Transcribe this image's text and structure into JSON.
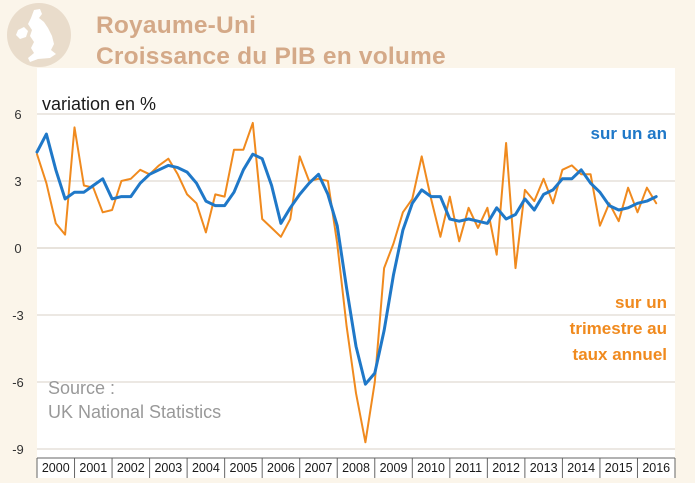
{
  "title": {
    "line1": "Royaume-Uni",
    "line2": "Croissance du PIB en volume"
  },
  "icon": "uk-map-icon",
  "colors": {
    "title": "#d4a988",
    "annual": "#1f78c8",
    "quarterly": "#f08a1e",
    "grid": "#d9d2c7",
    "background": "#fbf5ea",
    "plot_background": "#ffffff"
  },
  "chart_data": {
    "type": "line",
    "ylabel": "variation en %",
    "ylim": [
      -9,
      6
    ],
    "yticks": [
      "6",
      "3",
      "0",
      "-3",
      "-6",
      "-9"
    ],
    "ytick_values": [
      6,
      3,
      0,
      -3,
      -6,
      -9
    ],
    "xlim": [
      2000,
      2017
    ],
    "xticks": [
      "2000",
      "2001",
      "2002",
      "2003",
      "2004",
      "2005",
      "2006",
      "2007",
      "2008",
      "2009",
      "2010",
      "2011",
      "2012",
      "2013",
      "2014",
      "2015",
      "2016"
    ],
    "grid": "horizontal",
    "series": [
      {
        "name": "sur un an",
        "color": "#1f78c8",
        "x": [
          2000.0,
          2000.25,
          2000.5,
          2000.75,
          2001.0,
          2001.25,
          2001.5,
          2001.75,
          2002.0,
          2002.25,
          2002.5,
          2002.75,
          2003.0,
          2003.25,
          2003.5,
          2003.75,
          2004.0,
          2004.25,
          2004.5,
          2004.75,
          2005.0,
          2005.25,
          2005.5,
          2005.75,
          2006.0,
          2006.25,
          2006.5,
          2006.75,
          2007.0,
          2007.25,
          2007.5,
          2007.75,
          2008.0,
          2008.25,
          2008.5,
          2008.75,
          2009.0,
          2009.25,
          2009.5,
          2009.75,
          2010.0,
          2010.25,
          2010.5,
          2010.75,
          2011.0,
          2011.25,
          2011.5,
          2011.75,
          2012.0,
          2012.25,
          2012.5,
          2012.75,
          2013.0,
          2013.25,
          2013.5,
          2013.75,
          2014.0,
          2014.25,
          2014.5,
          2014.75,
          2015.0,
          2015.25,
          2015.5,
          2015.75,
          2016.0,
          2016.25,
          2016.5
        ],
        "y": [
          4.3,
          5.1,
          3.5,
          2.2,
          2.5,
          2.5,
          2.8,
          3.1,
          2.2,
          2.3,
          2.3,
          2.9,
          3.3,
          3.5,
          3.7,
          3.6,
          3.4,
          2.9,
          2.1,
          1.9,
          1.9,
          2.5,
          3.5,
          4.2,
          4.0,
          2.8,
          1.1,
          1.8,
          2.4,
          2.9,
          3.3,
          2.4,
          1.0,
          -1.8,
          -4.4,
          -6.1,
          -5.6,
          -3.7,
          -1.2,
          0.8,
          2.0,
          2.6,
          2.3,
          2.3,
          1.3,
          1.2,
          1.3,
          1.2,
          1.1,
          1.8,
          1.3,
          1.5,
          2.2,
          1.7,
          2.4,
          2.6,
          3.1,
          3.1,
          3.5,
          2.9,
          2.5,
          1.9,
          1.7,
          1.8,
          2.0,
          2.1,
          2.3
        ]
      },
      {
        "name": "sur un trimestre au taux annuel",
        "color": "#f08a1e",
        "x": [
          2000.0,
          2000.25,
          2000.5,
          2000.75,
          2001.0,
          2001.25,
          2001.5,
          2001.75,
          2002.0,
          2002.25,
          2002.5,
          2002.75,
          2003.0,
          2003.25,
          2003.5,
          2003.75,
          2004.0,
          2004.25,
          2004.5,
          2004.75,
          2005.0,
          2005.25,
          2005.5,
          2005.75,
          2006.0,
          2006.25,
          2006.5,
          2006.75,
          2007.0,
          2007.25,
          2007.5,
          2007.75,
          2008.0,
          2008.25,
          2008.5,
          2008.75,
          2009.0,
          2009.25,
          2009.5,
          2009.75,
          2010.0,
          2010.25,
          2010.5,
          2010.75,
          2011.0,
          2011.25,
          2011.5,
          2011.75,
          2012.0,
          2012.25,
          2012.5,
          2012.75,
          2013.0,
          2013.25,
          2013.5,
          2013.75,
          2014.0,
          2014.25,
          2014.5,
          2014.75,
          2015.0,
          2015.25,
          2015.5,
          2015.75,
          2016.0,
          2016.25,
          2016.5
        ],
        "y": [
          4.2,
          2.9,
          1.1,
          0.6,
          5.4,
          2.8,
          2.7,
          1.6,
          1.7,
          3.0,
          3.1,
          3.5,
          3.3,
          3.7,
          4.0,
          3.3,
          2.4,
          2.0,
          0.7,
          2.4,
          2.3,
          4.4,
          4.4,
          5.6,
          1.3,
          0.9,
          0.5,
          1.3,
          4.1,
          3.0,
          3.1,
          3.0,
          0.2,
          -3.5,
          -6.5,
          -8.7,
          -6.0,
          -0.9,
          0.2,
          1.6,
          2.2,
          4.1,
          2.2,
          0.5,
          2.3,
          0.3,
          1.8,
          0.9,
          1.8,
          -0.3,
          4.7,
          -0.9,
          2.6,
          2.1,
          3.1,
          2.0,
          3.5,
          3.7,
          3.3,
          3.3,
          1.0,
          2.0,
          1.2,
          2.7,
          1.6,
          2.7,
          2.0
        ]
      }
    ]
  },
  "legend": {
    "annual": "sur un an",
    "quarterly_line1": "sur un",
    "quarterly_line2": "trimestre au",
    "quarterly_line3": "taux annuel"
  },
  "source": {
    "line1": "Source :",
    "line2": "UK National Statistics"
  }
}
